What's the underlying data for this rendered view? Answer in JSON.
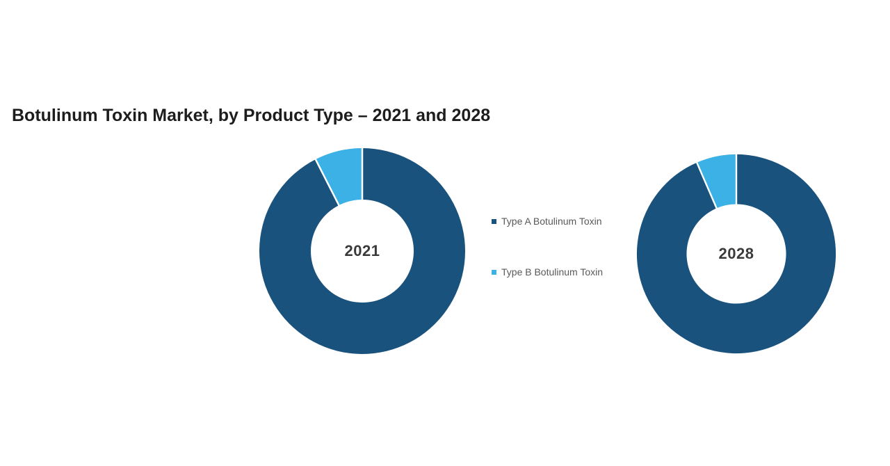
{
  "title": "Botulinum Toxin Market, by Product Type – 2021 and 2028",
  "chart_data": [
    {
      "type": "pie",
      "subtype": "donut",
      "center_label": "2021",
      "inner_radius_ratio": 0.5,
      "start_angle_deg": 0,
      "direction": "clockwise",
      "series": [
        {
          "name": "Type A Botulinum Toxin",
          "value": 92.5,
          "color": "#1A527E"
        },
        {
          "name": "Type B Botulinum Toxin",
          "value": 7.5,
          "color": "#3BB1E5"
        }
      ]
    },
    {
      "type": "pie",
      "subtype": "donut",
      "center_label": "2028",
      "inner_radius_ratio": 0.5,
      "start_angle_deg": 0,
      "direction": "clockwise",
      "series": [
        {
          "name": "Type A Botulinum Toxin",
          "value": 93.5,
          "color": "#1A527E"
        },
        {
          "name": "Type B Botulinum Toxin",
          "value": 6.5,
          "color": "#3BB1E5"
        }
      ]
    }
  ],
  "legend": {
    "position": "between-charts",
    "items": [
      {
        "label": "Type A Botulinum Toxin",
        "color": "#1A527E"
      },
      {
        "label": "Type B Botulinum Toxin",
        "color": "#3BB1E5"
      }
    ]
  },
  "style": {
    "background": "#FFFFFF",
    "title_color": "#1D1D1D",
    "center_label_color": "#3A3A3A",
    "legend_text_color": "#595959",
    "slice_separator_color": "#FFFFFF"
  }
}
